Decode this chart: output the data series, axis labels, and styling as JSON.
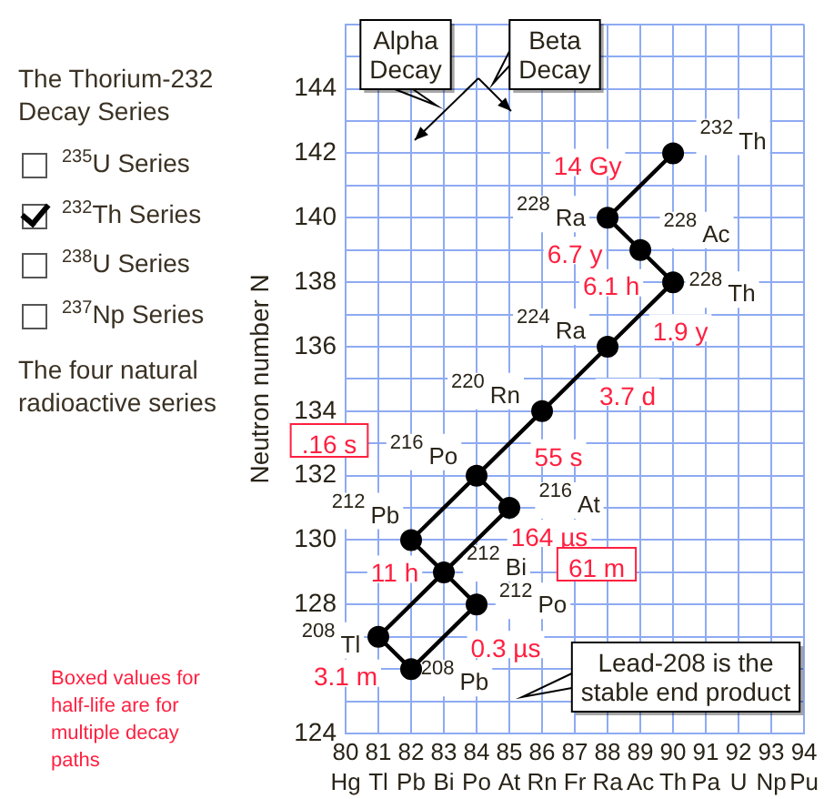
{
  "chart_data": {
    "type": "line",
    "title": "The Thorium-232 Decay Series",
    "ylabel": "Neutron number N",
    "grid": true,
    "legend": false,
    "xlim": [
      80,
      94
    ],
    "xticks": [
      {
        "value": 80,
        "label": "80\nHg"
      },
      {
        "value": 81,
        "label": "81\nTl"
      },
      {
        "value": 82,
        "label": "82\nPb"
      },
      {
        "value": 83,
        "label": "83\nBi"
      },
      {
        "value": 84,
        "label": "84\nPo"
      },
      {
        "value": 85,
        "label": "85\nAt"
      },
      {
        "value": 86,
        "label": "86\nRn"
      },
      {
        "value": 87,
        "label": "87\nFr"
      },
      {
        "value": 88,
        "label": "88\nRa"
      },
      {
        "value": 89,
        "label": "89\nAc"
      },
      {
        "value": 90,
        "label": "90\nTh"
      },
      {
        "value": 91,
        "label": "91\nPa"
      },
      {
        "value": 92,
        "label": "92\nU"
      },
      {
        "value": 93,
        "label": "93\nNp"
      },
      {
        "value": 94,
        "label": "94\nPu"
      }
    ],
    "ylim": [
      124,
      146
    ],
    "yticks": [
      124,
      {
        "value": 125,
        "label": null
      },
      {
        "value": 126,
        "label": null
      },
      {
        "value": 127,
        "label": null
      },
      128,
      {
        "value": 129,
        "label": null
      },
      130,
      {
        "value": 131,
        "label": null
      },
      132,
      {
        "value": 133,
        "label": null
      },
      134,
      {
        "value": 135,
        "label": null
      },
      136,
      {
        "value": 137,
        "label": null
      },
      138,
      {
        "value": 139,
        "label": null
      },
      140,
      {
        "value": 141,
        "label": null
      },
      142,
      {
        "value": 143,
        "label": null
      },
      144,
      {
        "value": 145,
        "label": null
      },
      {
        "value": 146,
        "label": null
      }
    ],
    "series": [
      {
        "type": "line",
        "color": "#000000",
        "marker": "none",
        "x": [
          90,
          88,
          89,
          90,
          88,
          86,
          84,
          82,
          83,
          84,
          82
        ],
        "values": [
          142,
          140,
          139,
          138,
          136,
          134,
          132,
          130,
          129,
          128,
          126
        ]
      },
      {
        "type": "line",
        "color": "#000000",
        "marker": "none",
        "x": [
          84,
          85,
          83
        ],
        "values": [
          132,
          131,
          129
        ]
      },
      {
        "type": "line",
        "color": "#000000",
        "marker": "none",
        "x": [
          83,
          81,
          82
        ],
        "values": [
          129,
          127,
          126
        ]
      },
      {
        "type": "scatter",
        "color": "#000000",
        "marker": "circle",
        "x": [
          90,
          88,
          89,
          90,
          88,
          86,
          84,
          85,
          82,
          83,
          84,
          81,
          82
        ],
        "values": [
          142,
          140,
          139,
          138,
          136,
          134,
          132,
          131,
          130,
          129,
          128,
          127,
          126
        ]
      }
    ],
    "annotations": [
      "$^{235}$U Series",
      "$^{232}$Th Series",
      "$^{238}$U Series",
      "$^{237}$Np Series",
      "The four natural radioactive series",
      "Boxed values for half-life are for multiple decay paths",
      "Alpha Decay",
      "Beta Decay",
      "Lead-208 is the stable end product",
      ".16 s",
      "61 m",
      {
        "text": "$^{232}$Th",
        "x": 90,
        "y": 142
      },
      {
        "text": "$^{228}$Ra",
        "x": 88,
        "y": 140
      },
      {
        "text": "$^{228}$Ac",
        "x": 89,
        "y": 139
      },
      {
        "text": "$^{228}$Th",
        "x": 90,
        "y": 138
      },
      {
        "text": "$^{224}$Ra",
        "x": 88,
        "y": 136
      },
      {
        "text": "$^{220}$Rn",
        "x": 86,
        "y": 134
      },
      {
        "text": "$^{216}$Po",
        "x": 84,
        "y": 132
      },
      {
        "text": "$^{216}$At",
        "x": 85,
        "y": 131
      },
      {
        "text": "$^{212}$Pb",
        "x": 82,
        "y": 130
      },
      {
        "text": "$^{212}$Bi",
        "x": 83,
        "y": 129
      },
      {
        "text": "$^{212}$Po",
        "x": 84,
        "y": 128
      },
      {
        "text": "$^{208}$Tl",
        "x": 81,
        "y": 127
      },
      {
        "text": "$^{208}$Pb",
        "x": 82,
        "y": 126
      },
      {
        "text": "14 Gy",
        "x": 90,
        "y": 142
      },
      {
        "text": "6.7 y",
        "x": 88,
        "y": 140
      },
      {
        "text": "6.1 h",
        "x": 89,
        "y": 139
      },
      {
        "text": "1.9 y",
        "x": 90,
        "y": 138
      },
      {
        "text": "3.7 d",
        "x": 88,
        "y": 136
      },
      {
        "text": "55 s",
        "x": 86,
        "y": 134
      },
      {
        "text": "164 µs",
        "x": 85,
        "y": 131
      },
      {
        "text": "11 h",
        "x": 82,
        "y": 130
      },
      {
        "text": "0.3 µs",
        "x": 84,
        "y": 128
      },
      {
        "text": "3.1 m",
        "x": 81,
        "y": 127
      }
    ]
  }
}
